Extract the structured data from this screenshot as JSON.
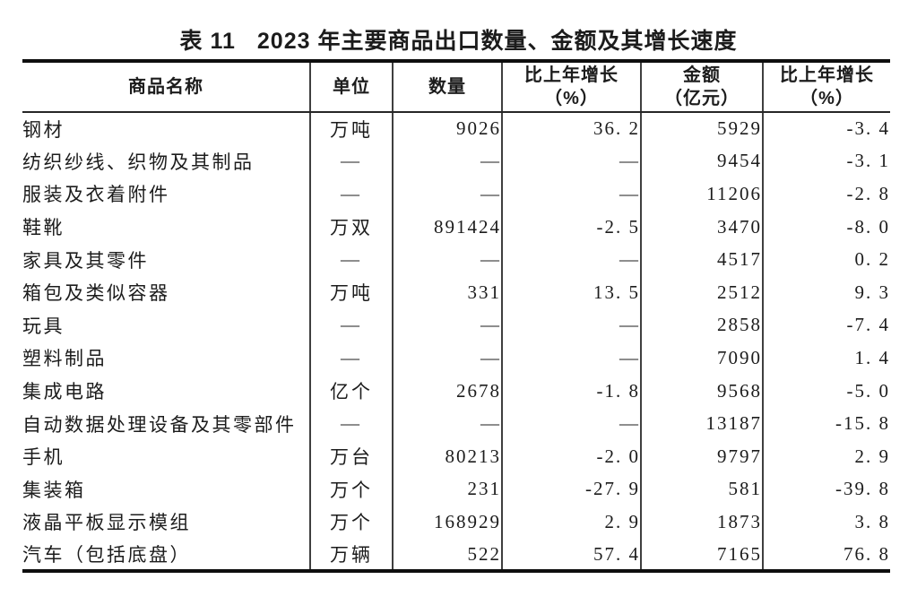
{
  "page": {
    "background_color": "#ffffff",
    "text_color": "#1c1c1c",
    "rule_color": "#0e0e0e"
  },
  "title": {
    "prefix": "表 11",
    "text": "2023 年主要商品出口数量、金额及其增长速度"
  },
  "table": {
    "missing_value_symbol": "—",
    "columns": [
      {
        "line1": "商品名称",
        "line2": ""
      },
      {
        "line1": "单位",
        "line2": ""
      },
      {
        "line1": "数量",
        "line2": ""
      },
      {
        "line1": "比上年增长",
        "line2": "（%）"
      },
      {
        "line1": "金额",
        "line2": "（亿元）"
      },
      {
        "line1": "比上年增长",
        "line2": "（%）"
      }
    ],
    "rows": [
      [
        "钢材",
        "万吨",
        "9026",
        "36.2",
        "5929",
        "-3.4"
      ],
      [
        "纺织纱线、织物及其制品",
        "—",
        "—",
        "—",
        "9454",
        "-3.1"
      ],
      [
        "服装及衣着附件",
        "—",
        "—",
        "—",
        "11206",
        "-2.8"
      ],
      [
        "鞋靴",
        "万双",
        "891424",
        "-2.5",
        "3470",
        "-8.0"
      ],
      [
        "家具及其零件",
        "—",
        "—",
        "—",
        "4517",
        "0.2"
      ],
      [
        "箱包及类似容器",
        "万吨",
        "331",
        "13.5",
        "2512",
        "9.3"
      ],
      [
        "玩具",
        "—",
        "—",
        "—",
        "2858",
        "-7.4"
      ],
      [
        "塑料制品",
        "—",
        "—",
        "—",
        "7090",
        "1.4"
      ],
      [
        "集成电路",
        "亿个",
        "2678",
        "-1.8",
        "9568",
        "-5.0"
      ],
      [
        "自动数据处理设备及其零部件",
        "—",
        "—",
        "—",
        "13187",
        "-15.8"
      ],
      [
        "手机",
        "万台",
        "80213",
        "-2.0",
        "9797",
        "2.9"
      ],
      [
        "集装箱",
        "万个",
        "231",
        "-27.9",
        "581",
        "-39.8"
      ],
      [
        "液晶平板显示模组",
        "万个",
        "168929",
        "2.9",
        "1873",
        "3.8"
      ],
      [
        "汽车（包括底盘）",
        "万辆",
        "522",
        "57.4",
        "7165",
        "76.8"
      ]
    ]
  }
}
